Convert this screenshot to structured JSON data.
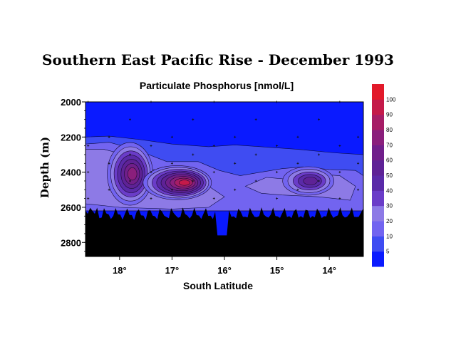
{
  "chart_data": {
    "type": "heatmap",
    "title": "Southern East Pacific Rise - December 1993",
    "subtitle": "Particulate Phosphorus [nmol/L]",
    "xlabel": "South Latitude",
    "ylabel": "Depth (m)",
    "x_ticks": [
      "18°",
      "17°",
      "16°",
      "15°",
      "14°"
    ],
    "x_tick_values": [
      18,
      17,
      16,
      15,
      14
    ],
    "xlim": [
      18.65,
      13.35
    ],
    "y_ticks": [
      "2000",
      "2200",
      "2400",
      "2600",
      "2800"
    ],
    "y_tick_values": [
      2000,
      2200,
      2400,
      2600,
      2800
    ],
    "ylim": [
      2000,
      2880
    ],
    "colorbar": {
      "levels": [
        0,
        5,
        10,
        20,
        30,
        40,
        50,
        60,
        70,
        80,
        90,
        100
      ],
      "labels": [
        "5",
        "10",
        "20",
        "30",
        "40",
        "50",
        "60",
        "70",
        "80",
        "90",
        "100"
      ],
      "colors": [
        "#0a1aff",
        "#3f4cf2",
        "#7264f0",
        "#8d7ae6",
        "#6a3cc8",
        "#5a2aa8",
        "#5e2296",
        "#701f8a",
        "#8a1f7c",
        "#a61d66",
        "#c41a4a",
        "#e21a2a"
      ]
    },
    "plumes": [
      {
        "lat": 17.8,
        "depth": 2410,
        "peak": 75
      },
      {
        "lat": 16.9,
        "depth": 2460,
        "peak": 95
      },
      {
        "lat": 14.4,
        "depth": 2450,
        "peak": 55
      }
    ],
    "seafloor_color": "#000000"
  }
}
